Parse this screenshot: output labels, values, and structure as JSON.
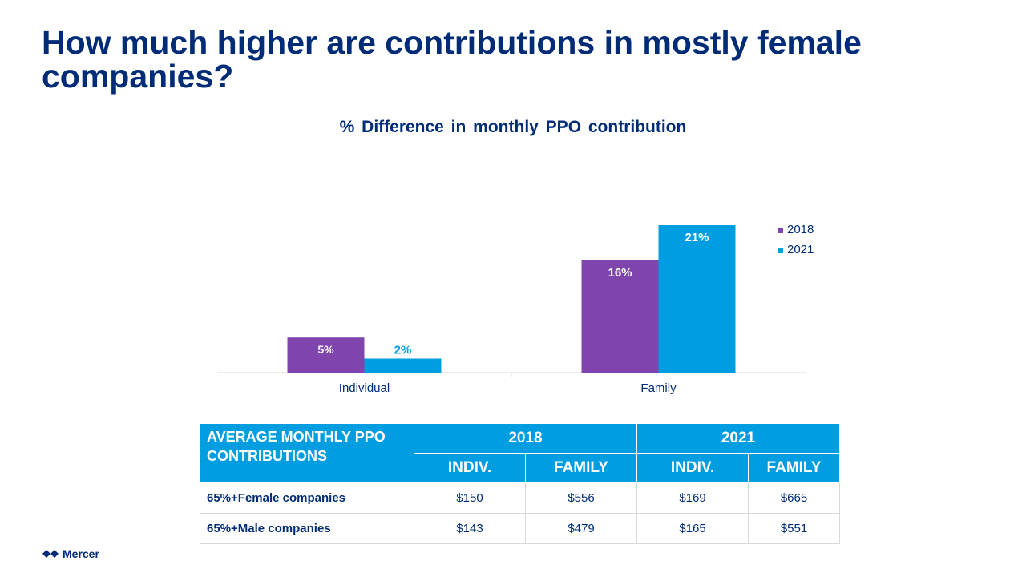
{
  "slide_title": "How much higher are contributions in mostly female companies?",
  "chart_data": {
    "type": "bar",
    "title": "% Difference in monthly PPO contribution",
    "categories": [
      "Individual",
      "Family"
    ],
    "series": [
      {
        "name": "2018",
        "values": [
          5,
          16
        ],
        "labels": [
          "5%",
          "16%"
        ],
        "color": "#7f45ad"
      },
      {
        "name": "2021",
        "values": [
          2,
          21
        ],
        "labels": [
          "2%",
          "21%"
        ],
        "color": "#009de0"
      }
    ],
    "ylim": [
      0,
      25
    ],
    "grid": false,
    "legend": "right"
  },
  "table": {
    "corner": "AVERAGE  MONTHLY PPO CONTRIBUTIONS",
    "years": [
      "2018",
      "2021"
    ],
    "subheaders": [
      "INDIV.",
      "FAMILY",
      "INDIV.",
      "FAMILY"
    ],
    "rows": [
      {
        "label": "65%+Female companies",
        "values": [
          "$150",
          "$556",
          "$169",
          "$665"
        ]
      },
      {
        "label": "65%+Male companies",
        "values": [
          "$143",
          "$479",
          "$165",
          "$551"
        ]
      }
    ]
  },
  "logo": "Mercer"
}
